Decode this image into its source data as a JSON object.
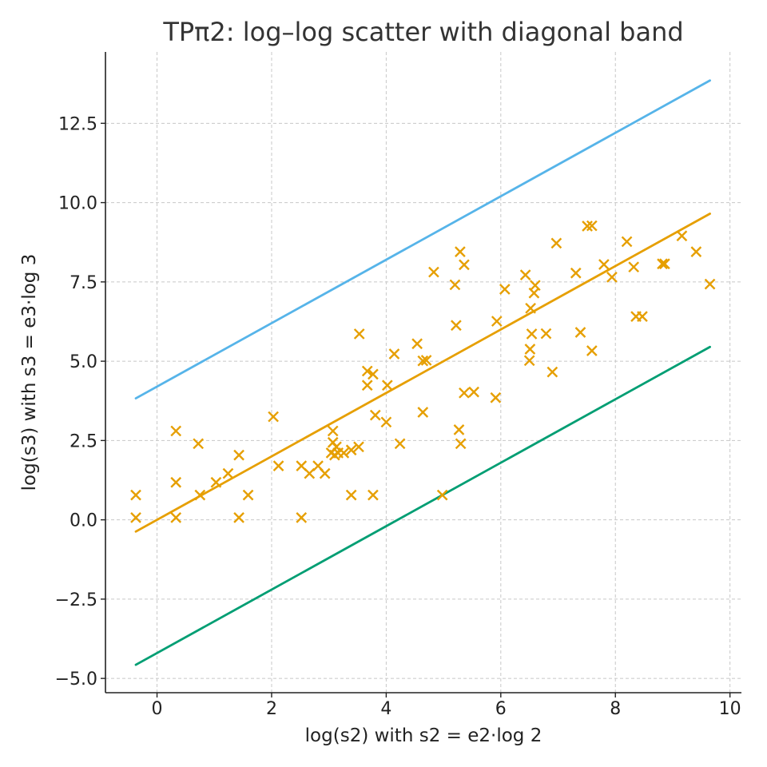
{
  "chart_data": {
    "type": "scatter",
    "title": "TPπ2: log–log scatter with diagonal band",
    "xlabel": "log(s2)  with  s2 = e2·log 2",
    "ylabel": "log(s3)  with  s3 = e3·log 3",
    "xlim": [
      -0.9,
      10.2
    ],
    "ylim": [
      -5.45,
      14.75
    ],
    "grid": true,
    "x_ticks": [
      0,
      2,
      4,
      6,
      8,
      10
    ],
    "x_tick_labels": [
      "0",
      "2",
      "4",
      "6",
      "8",
      "10"
    ],
    "y_ticks": [
      -5.0,
      -2.5,
      0.0,
      2.5,
      5.0,
      7.5,
      10.0,
      12.5
    ],
    "y_tick_labels": [
      "−5.0",
      "−2.5",
      "0.0",
      "2.5",
      "5.0",
      "7.5",
      "10.0",
      "12.5"
    ],
    "lines": [
      {
        "name": "upper-band",
        "color": "#56b4e9",
        "x": [
          -0.37,
          9.65
        ],
        "y": [
          3.83,
          13.85
        ]
      },
      {
        "name": "center-diagonal",
        "color": "#e69f00",
        "x": [
          -0.37,
          9.65
        ],
        "y": [
          -0.37,
          9.65
        ]
      },
      {
        "name": "lower-band",
        "color": "#009e73",
        "x": [
          -0.37,
          9.65
        ],
        "y": [
          -4.57,
          5.45
        ]
      }
    ],
    "series": [
      {
        "name": "samples",
        "marker": "x",
        "color": "#e69f00",
        "x": [
          -0.37,
          -0.37,
          0.33,
          0.33,
          0.33,
          0.72,
          0.75,
          1.03,
          1.24,
          1.43,
          1.43,
          1.59,
          2.03,
          2.12,
          2.52,
          2.52,
          2.66,
          2.81,
          2.93,
          3.04,
          3.07,
          3.07,
          3.1,
          3.13,
          3.16,
          3.26,
          3.39,
          3.39,
          3.52,
          3.53,
          3.67,
          3.67,
          3.77,
          3.77,
          3.81,
          4.0,
          4.02,
          4.14,
          4.24,
          4.54,
          4.64,
          4.64,
          4.7,
          4.83,
          4.98,
          5.2,
          5.22,
          5.27,
          5.29,
          5.3,
          5.36,
          5.36,
          5.53,
          5.91,
          5.93,
          6.07,
          6.43,
          6.5,
          6.51,
          6.52,
          6.54,
          6.58,
          6.6,
          6.79,
          6.9,
          6.97,
          7.31,
          7.39,
          7.51,
          7.59,
          7.59,
          7.8,
          7.94,
          8.2,
          8.32,
          8.36,
          8.47,
          8.82,
          8.86,
          9.16,
          9.41,
          9.65
        ],
        "y": [
          0.07,
          0.78,
          0.07,
          1.18,
          2.8,
          2.4,
          0.78,
          1.18,
          1.46,
          0.07,
          2.04,
          0.78,
          3.25,
          1.7,
          0.07,
          1.7,
          1.46,
          1.7,
          1.46,
          2.11,
          2.44,
          2.8,
          2.04,
          2.3,
          2.11,
          2.11,
          0.78,
          2.2,
          2.3,
          5.86,
          4.24,
          4.69,
          0.78,
          4.59,
          3.3,
          3.08,
          4.24,
          5.23,
          2.4,
          5.55,
          3.39,
          5.01,
          5.03,
          7.81,
          0.78,
          7.41,
          6.13,
          2.84,
          8.45,
          2.4,
          4.0,
          8.04,
          4.03,
          3.85,
          6.26,
          7.27,
          7.72,
          5.02,
          5.38,
          6.67,
          5.86,
          7.15,
          7.39,
          5.87,
          4.66,
          8.72,
          7.78,
          5.91,
          9.26,
          5.33,
          9.27,
          8.05,
          7.65,
          8.77,
          7.97,
          6.41,
          6.41,
          8.07,
          8.07,
          8.95,
          8.45,
          7.43
        ]
      }
    ]
  }
}
